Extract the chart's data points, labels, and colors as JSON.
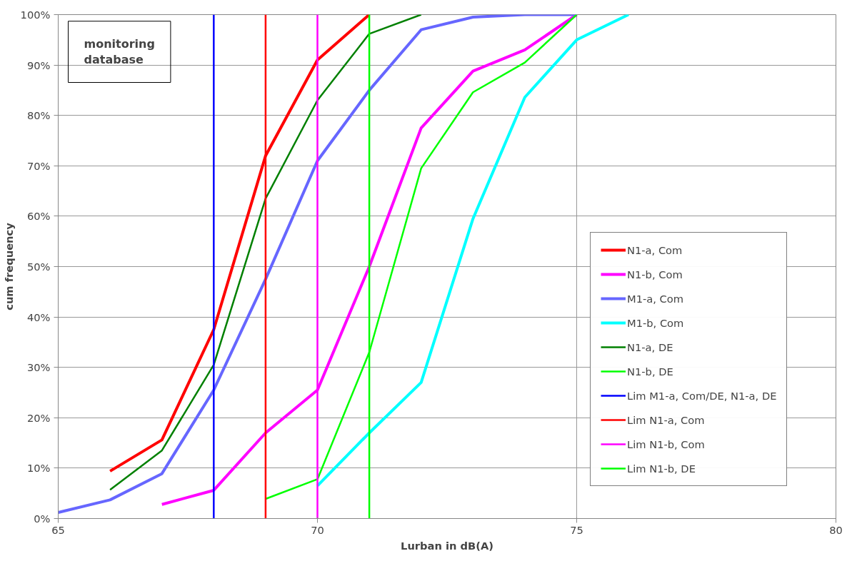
{
  "chart_data": {
    "type": "line",
    "xlabel": "Lurban in dB(A)",
    "ylabel": "cum frequency",
    "annotations": [
      "monitoring database"
    ],
    "xlim": [
      65,
      80
    ],
    "xticks": [
      65,
      70,
      75,
      80
    ],
    "ylim": [
      0,
      100
    ],
    "yticks": [
      {
        "value": 0,
        "label": "0%"
      },
      {
        "value": 10,
        "label": "10%"
      },
      {
        "value": 20,
        "label": "20%"
      },
      {
        "value": 30,
        "label": "30%"
      },
      {
        "value": 40,
        "label": "40%"
      },
      {
        "value": 50,
        "label": "50%"
      },
      {
        "value": 60,
        "label": "60%"
      },
      {
        "value": 70,
        "label": "70%"
      },
      {
        "value": 80,
        "label": "80%"
      },
      {
        "value": 90,
        "label": "90%"
      },
      {
        "value": 100,
        "label": "100%"
      }
    ],
    "grid": true,
    "legend": "right",
    "marker": "none",
    "line_style": "solid",
    "series": [
      {
        "name": "N1-a, Com",
        "color": "#ff0000",
        "x": [
          66,
          67,
          68,
          69,
          70,
          71
        ],
        "values": [
          9.4,
          15.6,
          37.5,
          72,
          91,
          100
        ]
      },
      {
        "name": "N1-b, Com",
        "color": "#ff00ff",
        "x": [
          67,
          68,
          69,
          70,
          71,
          72,
          73,
          74,
          75
        ],
        "values": [
          2.8,
          5.6,
          17,
          25.5,
          50,
          77.5,
          88.8,
          93,
          100
        ]
      },
      {
        "name": "M1-a, Com",
        "color": "#6666ff",
        "x": [
          65,
          66,
          67,
          68,
          69,
          70,
          71,
          72,
          73,
          74,
          75
        ],
        "values": [
          1.2,
          3.7,
          8.9,
          25.5,
          47.5,
          71,
          85,
          97,
          99.5,
          100,
          100
        ]
      },
      {
        "name": "M1-b, Com",
        "color": "#00ffff",
        "x": [
          70,
          71,
          72,
          73,
          74,
          75,
          76
        ],
        "values": [
          6.5,
          17,
          27,
          59.5,
          83.6,
          95,
          100
        ]
      },
      {
        "name": "N1-a, DE",
        "color": "#008000",
        "x": [
          66,
          67,
          68,
          69,
          70,
          71,
          72
        ],
        "values": [
          5.7,
          13.5,
          30.5,
          63.5,
          83,
          96.2,
          100
        ]
      },
      {
        "name": "N1-b, DE",
        "color": "#00ff00",
        "x": [
          69,
          70,
          71,
          72,
          73,
          74,
          75
        ],
        "values": [
          3.9,
          7.8,
          33,
          69.5,
          84.6,
          90.5,
          100
        ]
      },
      {
        "name": "Lim M1-a, Com/DE, N1-a, DE",
        "color": "#0000ff",
        "x": [
          68,
          68
        ],
        "values": [
          0,
          100
        ]
      },
      {
        "name": "Lim N1-a, Com",
        "color": "#ff0000",
        "x": [
          69,
          69
        ],
        "values": [
          0,
          100
        ]
      },
      {
        "name": "Lim N1-b, Com",
        "color": "#ff00ff",
        "x": [
          70,
          70
        ],
        "values": [
          0,
          100
        ]
      },
      {
        "name": "Lim N1-b, DE",
        "color": "#00ff00",
        "x": [
          71,
          71
        ],
        "values": [
          0,
          100
        ]
      }
    ]
  }
}
